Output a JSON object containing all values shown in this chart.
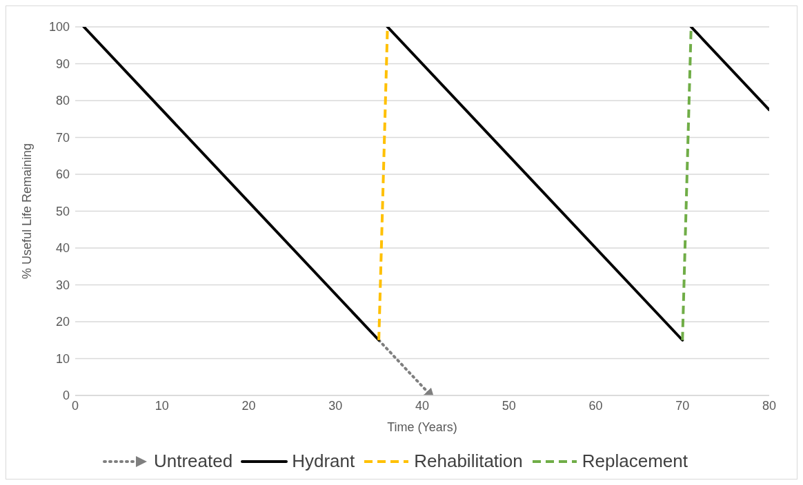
{
  "chart_data": {
    "type": "line",
    "xlabel": "Time (Years)",
    "ylabel": "% Useful Life Remaining",
    "xlim": [
      0,
      80
    ],
    "xticks": [
      0,
      10,
      20,
      30,
      40,
      50,
      60,
      70,
      80
    ],
    "ylim": [
      0,
      100
    ],
    "yticks": [
      0,
      10,
      20,
      30,
      40,
      50,
      60,
      70,
      80,
      90,
      100
    ],
    "grid": "y",
    "legend": "bottom",
    "marker": "none",
    "series": [
      {
        "name": "Untreated",
        "color": "#7f7f7f",
        "line_style": "dotted",
        "x": [
          35,
          41
        ],
        "values": [
          15,
          0
        ]
      },
      {
        "name": "Hydrant",
        "color": "#000000",
        "line_style": "solid",
        "x": [
          1,
          35,
          35.5,
          36,
          70,
          70.5,
          71,
          80
        ],
        "values": [
          100,
          15,
          null,
          100,
          15,
          null,
          100,
          77.5
        ]
      },
      {
        "name": "Rehabilitation",
        "color": "#ffc000",
        "line_style": "dashed",
        "x": [
          35,
          36
        ],
        "values": [
          15,
          100
        ]
      },
      {
        "name": "Replacement",
        "color": "#70ad47",
        "line_style": "dashed",
        "x": [
          70,
          71
        ],
        "values": [
          15,
          100
        ]
      }
    ]
  }
}
